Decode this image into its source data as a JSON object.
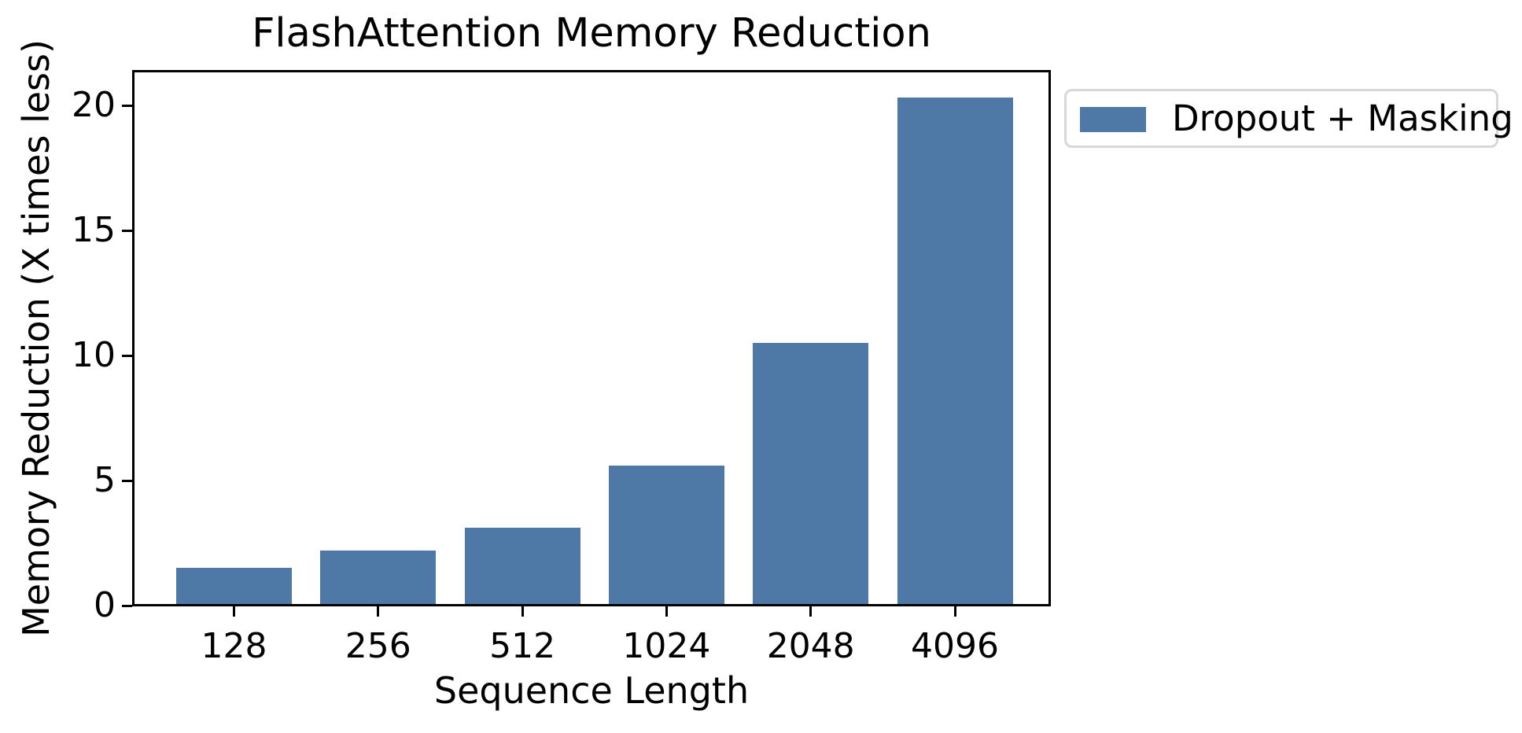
{
  "chart_data": {
    "type": "bar",
    "title": "FlashAttention Memory Reduction",
    "xlabel": "Sequence Length",
    "ylabel": "Memory Reduction (X times less)",
    "categories": [
      "128",
      "256",
      "512",
      "1024",
      "2048",
      "4096"
    ],
    "series": [
      {
        "name": "Dropout + Masking",
        "values": [
          1.5,
          2.2,
          3.1,
          5.6,
          10.5,
          20.3
        ]
      }
    ],
    "ylim": [
      0,
      21.4
    ],
    "yticks": [
      0,
      5,
      10,
      15,
      20
    ],
    "bar_color": "#4E79A7",
    "axis_color": "#000000",
    "text_color": "#000000",
    "grid": false,
    "legend_position": "outside-upper-right"
  },
  "legend": {
    "label": "Dropout + Masking",
    "swatch_color": "#4E79A7"
  }
}
